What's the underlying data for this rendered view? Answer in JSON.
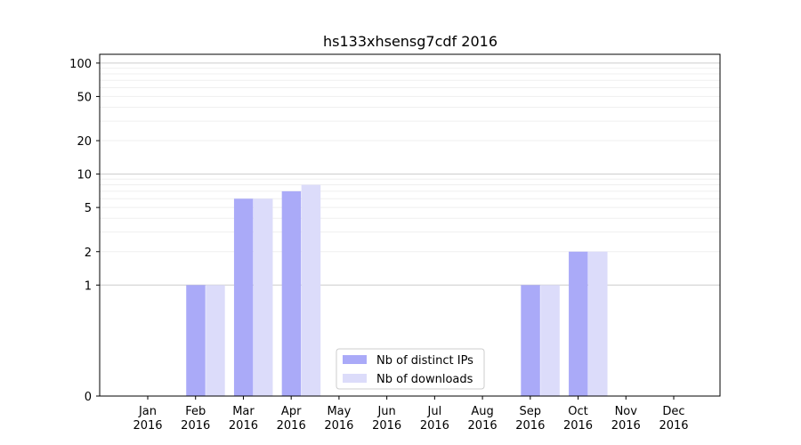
{
  "chart_data": {
    "type": "bar",
    "title": "hs133xhsensg7cdf 2016",
    "categories": [
      [
        "Jan",
        "2016"
      ],
      [
        "Feb",
        "2016"
      ],
      [
        "Mar",
        "2016"
      ],
      [
        "Apr",
        "2016"
      ],
      [
        "May",
        "2016"
      ],
      [
        "Jun",
        "2016"
      ],
      [
        "Jul",
        "2016"
      ],
      [
        "Aug",
        "2016"
      ],
      [
        "Sep",
        "2016"
      ],
      [
        "Oct",
        "2016"
      ],
      [
        "Nov",
        "2016"
      ],
      [
        "Dec",
        "2016"
      ]
    ],
    "series": [
      {
        "name": "Nb of distinct IPs",
        "color": "#aaaaf8",
        "values": [
          0,
          1,
          6,
          7,
          0,
          0,
          0,
          0,
          1,
          2,
          0,
          0
        ]
      },
      {
        "name": "Nb of downloads",
        "color": "#dcdcfa",
        "values": [
          0,
          1,
          6,
          8,
          0,
          0,
          0,
          0,
          1,
          2,
          0,
          0
        ]
      }
    ],
    "y_scale": "symlog",
    "ylim": [
      0,
      120
    ],
    "y_ticks": [
      "0",
      "1",
      "2",
      "5",
      "10",
      "20",
      "50",
      "100"
    ],
    "xlabel": "",
    "ylabel": "",
    "grid": "horizontal",
    "legend_position": "bottom-center"
  }
}
